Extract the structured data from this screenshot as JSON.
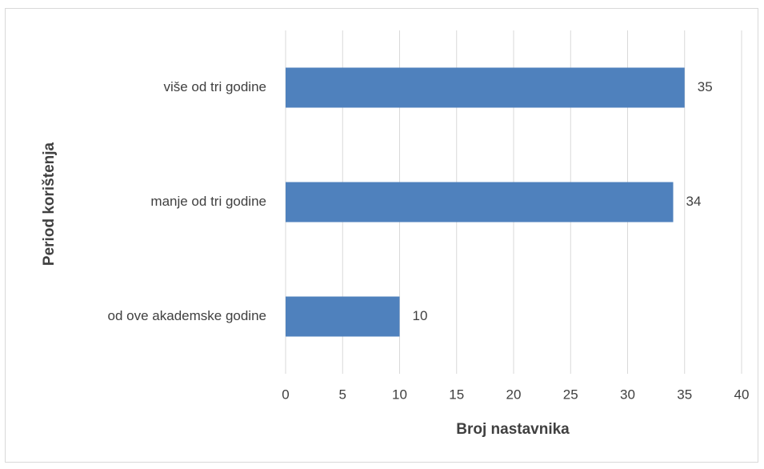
{
  "chart_data": {
    "type": "barh",
    "categories": [
      "od ove akademske godine",
      "manje od tri godine",
      "više od tri godine"
    ],
    "values": [
      10,
      34,
      35
    ],
    "color": "#4f81bd",
    "xlabel": "Broj nastavnika",
    "ylabel": "Period korištenja",
    "xlim": [
      0,
      40
    ],
    "xticks": [
      0,
      5,
      10,
      15,
      20,
      25,
      30,
      35,
      40
    ],
    "grid": true
  }
}
